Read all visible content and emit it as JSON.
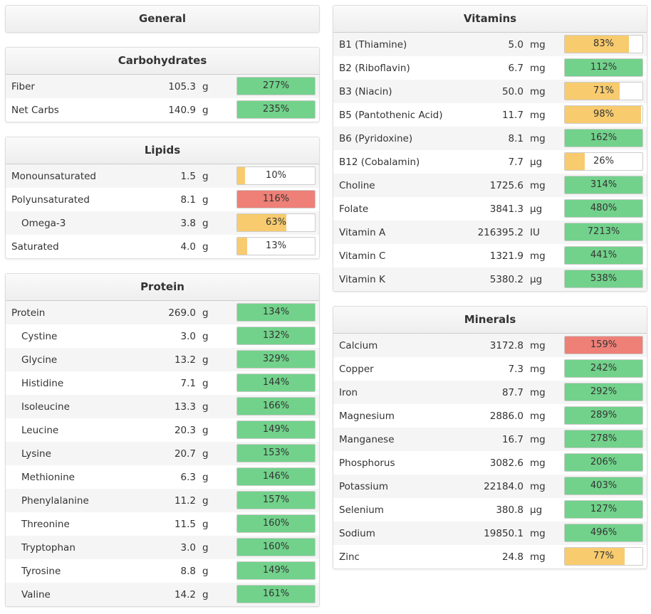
{
  "left": [
    {
      "title": "General"
    },
    {
      "title": "Carbohydrates",
      "rows": [
        {
          "name": "Fiber",
          "amount": "105.3",
          "unit": "g",
          "percent": 277,
          "percent_label": "277%",
          "color": "#72d28b"
        },
        {
          "name": "Net Carbs",
          "amount": "140.9",
          "unit": "g",
          "percent": 235,
          "percent_label": "235%",
          "color": "#72d28b"
        }
      ]
    },
    {
      "title": "Lipids",
      "rows": [
        {
          "name": "Monounsaturated",
          "amount": "1.5",
          "unit": "g",
          "percent": 10,
          "percent_label": "10%",
          "color": "#f7cb6e"
        },
        {
          "name": "Polyunsaturated",
          "amount": "8.1",
          "unit": "g",
          "percent": 116,
          "percent_label": "116%",
          "color": "#ee8078"
        },
        {
          "name": "Omega-3",
          "amount": "3.8",
          "unit": "g",
          "percent": 63,
          "percent_label": "63%",
          "color": "#f7cb6e",
          "indent": true
        },
        {
          "name": "Saturated",
          "amount": "4.0",
          "unit": "g",
          "percent": 13,
          "percent_label": "13%",
          "color": "#f7cb6e"
        }
      ]
    },
    {
      "title": "Protein",
      "rows": [
        {
          "name": "Protein",
          "amount": "269.0",
          "unit": "g",
          "percent": 134,
          "percent_label": "134%",
          "color": "#72d28b"
        },
        {
          "name": "Cystine",
          "amount": "3.0",
          "unit": "g",
          "percent": 132,
          "percent_label": "132%",
          "color": "#72d28b",
          "indent": true
        },
        {
          "name": "Glycine",
          "amount": "13.2",
          "unit": "g",
          "percent": 329,
          "percent_label": "329%",
          "color": "#72d28b",
          "indent": true
        },
        {
          "name": "Histidine",
          "amount": "7.1",
          "unit": "g",
          "percent": 144,
          "percent_label": "144%",
          "color": "#72d28b",
          "indent": true
        },
        {
          "name": "Isoleucine",
          "amount": "13.3",
          "unit": "g",
          "percent": 166,
          "percent_label": "166%",
          "color": "#72d28b",
          "indent": true
        },
        {
          "name": "Leucine",
          "amount": "20.3",
          "unit": "g",
          "percent": 149,
          "percent_label": "149%",
          "color": "#72d28b",
          "indent": true
        },
        {
          "name": "Lysine",
          "amount": "20.7",
          "unit": "g",
          "percent": 153,
          "percent_label": "153%",
          "color": "#72d28b",
          "indent": true
        },
        {
          "name": "Methionine",
          "amount": "6.3",
          "unit": "g",
          "percent": 146,
          "percent_label": "146%",
          "color": "#72d28b",
          "indent": true
        },
        {
          "name": "Phenylalanine",
          "amount": "11.2",
          "unit": "g",
          "percent": 157,
          "percent_label": "157%",
          "color": "#72d28b",
          "indent": true
        },
        {
          "name": "Threonine",
          "amount": "11.5",
          "unit": "g",
          "percent": 160,
          "percent_label": "160%",
          "color": "#72d28b",
          "indent": true
        },
        {
          "name": "Tryptophan",
          "amount": "3.0",
          "unit": "g",
          "percent": 160,
          "percent_label": "160%",
          "color": "#72d28b",
          "indent": true
        },
        {
          "name": "Tyrosine",
          "amount": "8.8",
          "unit": "g",
          "percent": 149,
          "percent_label": "149%",
          "color": "#72d28b",
          "indent": true
        },
        {
          "name": "Valine",
          "amount": "14.2",
          "unit": "g",
          "percent": 161,
          "percent_label": "161%",
          "color": "#72d28b",
          "indent": true
        }
      ]
    }
  ],
  "right": [
    {
      "title": "Vitamins",
      "rows": [
        {
          "name": "B1 (Thiamine)",
          "amount": "5.0",
          "unit": "mg",
          "percent": 83,
          "percent_label": "83%",
          "color": "#f7cb6e"
        },
        {
          "name": "B2 (Riboflavin)",
          "amount": "6.7",
          "unit": "mg",
          "percent": 112,
          "percent_label": "112%",
          "color": "#72d28b"
        },
        {
          "name": "B3 (Niacin)",
          "amount": "50.0",
          "unit": "mg",
          "percent": 71,
          "percent_label": "71%",
          "color": "#f7cb6e"
        },
        {
          "name": "B5 (Pantothenic Acid)",
          "amount": "11.7",
          "unit": "mg",
          "percent": 98,
          "percent_label": "98%",
          "color": "#f7cb6e"
        },
        {
          "name": "B6 (Pyridoxine)",
          "amount": "8.1",
          "unit": "mg",
          "percent": 162,
          "percent_label": "162%",
          "color": "#72d28b"
        },
        {
          "name": "B12 (Cobalamin)",
          "amount": "7.7",
          "unit": "µg",
          "percent": 26,
          "percent_label": "26%",
          "color": "#f7cb6e"
        },
        {
          "name": "Choline",
          "amount": "1725.6",
          "unit": "mg",
          "percent": 314,
          "percent_label": "314%",
          "color": "#72d28b"
        },
        {
          "name": "Folate",
          "amount": "3841.3",
          "unit": "µg",
          "percent": 480,
          "percent_label": "480%",
          "color": "#72d28b"
        },
        {
          "name": "Vitamin A",
          "amount": "216395.2",
          "unit": "IU",
          "percent": 7213,
          "percent_label": "7213%",
          "color": "#72d28b"
        },
        {
          "name": "Vitamin C",
          "amount": "1321.9",
          "unit": "mg",
          "percent": 441,
          "percent_label": "441%",
          "color": "#72d28b"
        },
        {
          "name": "Vitamin K",
          "amount": "5380.2",
          "unit": "µg",
          "percent": 538,
          "percent_label": "538%",
          "color": "#72d28b"
        }
      ]
    },
    {
      "title": "Minerals",
      "rows": [
        {
          "name": "Calcium",
          "amount": "3172.8",
          "unit": "mg",
          "percent": 159,
          "percent_label": "159%",
          "color": "#ee8078"
        },
        {
          "name": "Copper",
          "amount": "7.3",
          "unit": "mg",
          "percent": 242,
          "percent_label": "242%",
          "color": "#72d28b"
        },
        {
          "name": "Iron",
          "amount": "87.7",
          "unit": "mg",
          "percent": 292,
          "percent_label": "292%",
          "color": "#72d28b"
        },
        {
          "name": "Magnesium",
          "amount": "2886.0",
          "unit": "mg",
          "percent": 289,
          "percent_label": "289%",
          "color": "#72d28b"
        },
        {
          "name": "Manganese",
          "amount": "16.7",
          "unit": "mg",
          "percent": 278,
          "percent_label": "278%",
          "color": "#72d28b"
        },
        {
          "name": "Phosphorus",
          "amount": "3082.6",
          "unit": "mg",
          "percent": 206,
          "percent_label": "206%",
          "color": "#72d28b"
        },
        {
          "name": "Potassium",
          "amount": "22184.0",
          "unit": "mg",
          "percent": 403,
          "percent_label": "403%",
          "color": "#72d28b"
        },
        {
          "name": "Selenium",
          "amount": "380.8",
          "unit": "µg",
          "percent": 127,
          "percent_label": "127%",
          "color": "#72d28b"
        },
        {
          "name": "Sodium",
          "amount": "19850.1",
          "unit": "mg",
          "percent": 496,
          "percent_label": "496%",
          "color": "#72d28b"
        },
        {
          "name": "Zinc",
          "amount": "24.8",
          "unit": "mg",
          "percent": 77,
          "percent_label": "77%",
          "color": "#f7cb6e"
        }
      ]
    }
  ]
}
